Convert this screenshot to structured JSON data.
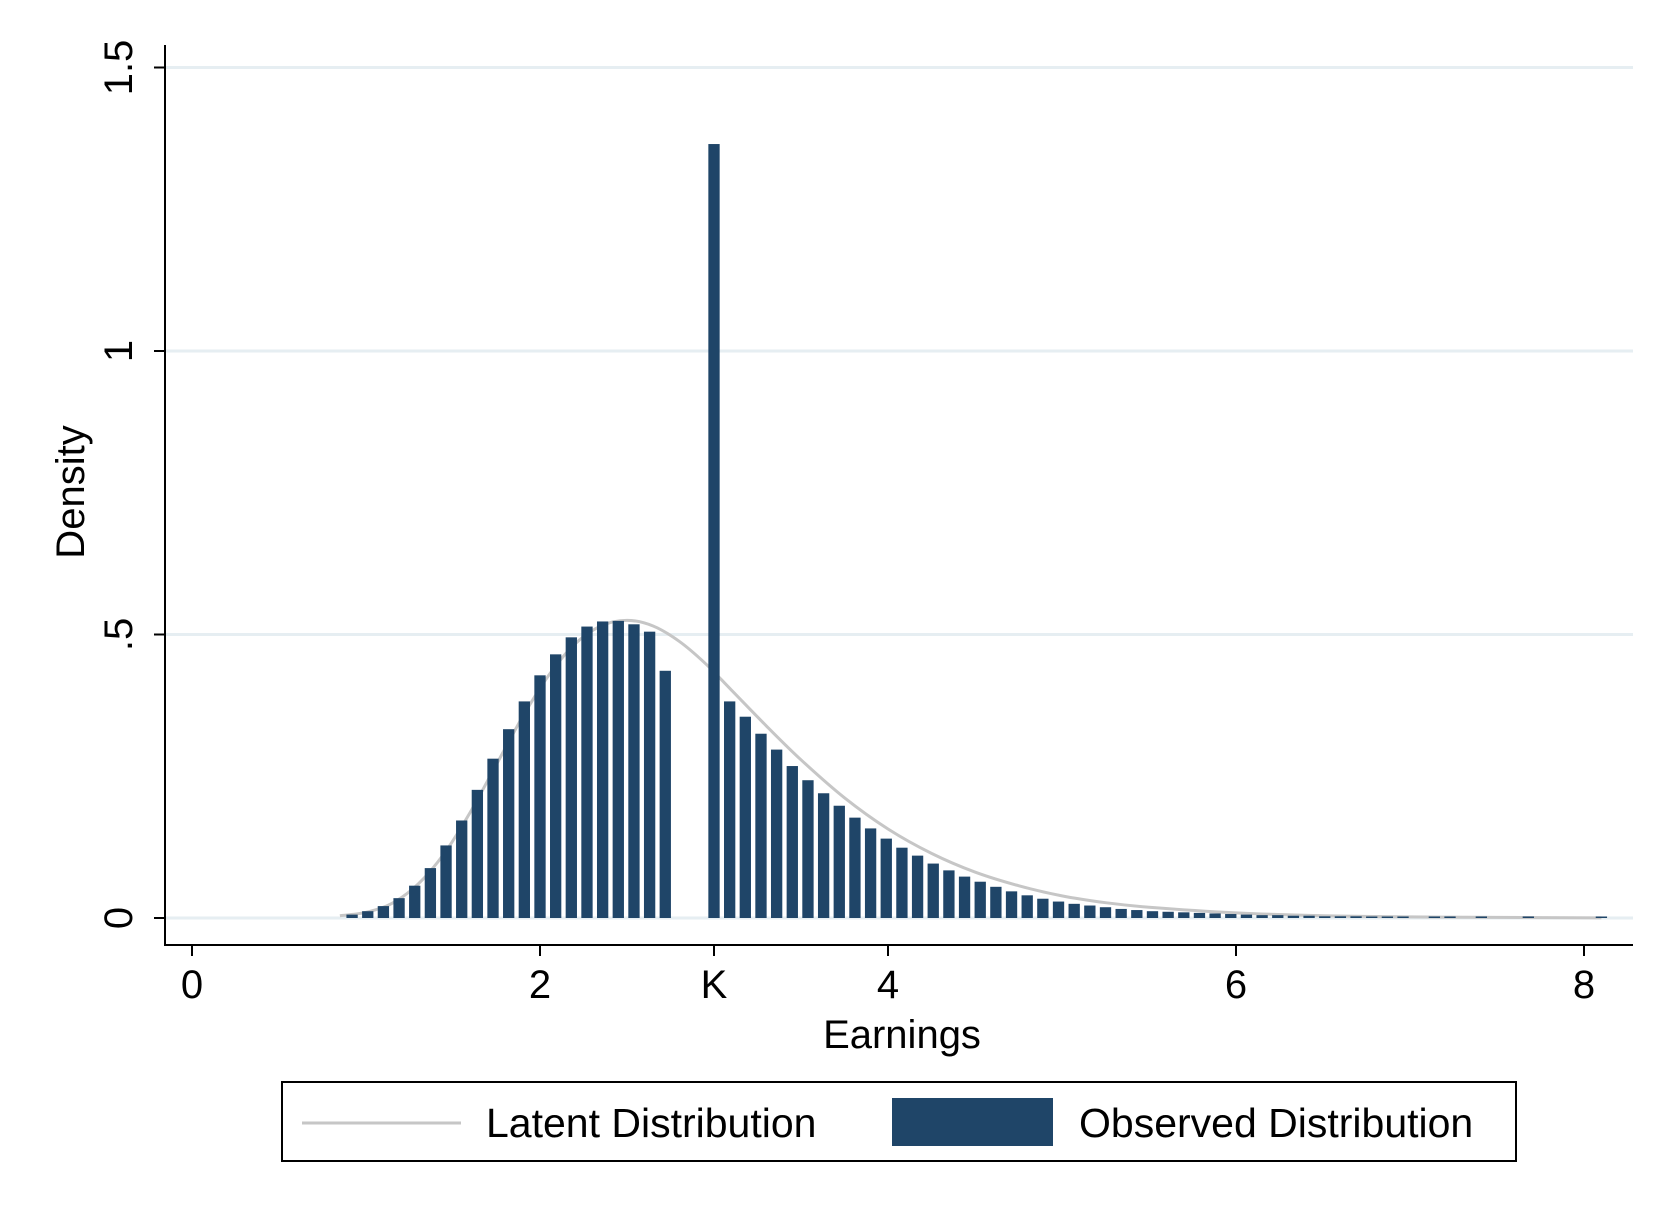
{
  "colors": {
    "bar": "#1f4568",
    "latent_line": "#c6c6c6",
    "grid": "#e6eef2",
    "axis": "#000000",
    "background": "#ffffff"
  },
  "chart_data": {
    "type": "bar",
    "title": "",
    "xlabel": "Earnings",
    "ylabel": "Density",
    "xlim": [
      -0.15,
      8.3
    ],
    "ylim": [
      -0.05,
      1.6
    ],
    "grid": true,
    "legend_position": "bottom",
    "x_ticks": [
      {
        "value": 0,
        "label": "0"
      },
      {
        "value": 2,
        "label": "2"
      },
      {
        "value": 3,
        "label": "K"
      },
      {
        "value": 4,
        "label": "4"
      },
      {
        "value": 6,
        "label": "6"
      },
      {
        "value": 8,
        "label": "8"
      }
    ],
    "y_ticks": [
      {
        "value": 0,
        "label": "0"
      },
      {
        "value": 0.5,
        "label": ".5"
      },
      {
        "value": 1,
        "label": "1"
      },
      {
        "value": 1.5,
        "label": "1.5"
      }
    ],
    "bar_width": 0.065,
    "series": [
      {
        "name": "Observed Distribution",
        "type": "bar",
        "x": [
          0.92,
          1.01,
          1.1,
          1.19,
          1.28,
          1.37,
          1.46,
          1.55,
          1.64,
          1.73,
          1.82,
          1.91,
          2.0,
          2.09,
          2.18,
          2.27,
          2.36,
          2.45,
          2.54,
          2.63,
          2.72,
          3.0,
          3.09,
          3.18,
          3.27,
          3.36,
          3.45,
          3.54,
          3.63,
          3.72,
          3.81,
          3.9,
          3.99,
          4.08,
          4.17,
          4.26,
          4.35,
          4.44,
          4.53,
          4.62,
          4.71,
          4.8,
          4.89,
          4.98,
          5.07,
          5.16,
          5.25,
          5.34,
          5.43,
          5.52,
          5.61,
          5.7,
          5.79,
          5.88,
          5.97,
          6.06,
          6.15,
          6.24,
          6.33,
          6.42,
          6.51,
          6.6,
          6.69,
          6.78,
          6.87,
          6.96,
          7.14,
          7.23,
          7.41,
          7.68,
          8.1
        ],
        "values": [
          0.006,
          0.012,
          0.021,
          0.035,
          0.057,
          0.088,
          0.128,
          0.172,
          0.226,
          0.281,
          0.333,
          0.382,
          0.428,
          0.465,
          0.495,
          0.514,
          0.523,
          0.524,
          0.518,
          0.505,
          0.436,
          1.365,
          0.382,
          0.355,
          0.325,
          0.297,
          0.268,
          0.243,
          0.22,
          0.198,
          0.177,
          0.158,
          0.14,
          0.124,
          0.11,
          0.096,
          0.084,
          0.073,
          0.064,
          0.055,
          0.047,
          0.04,
          0.034,
          0.029,
          0.025,
          0.022,
          0.019,
          0.016,
          0.014,
          0.012,
          0.011,
          0.01,
          0.009,
          0.008,
          0.007,
          0.006,
          0.005,
          0.005,
          0.004,
          0.004,
          0.003,
          0.003,
          0.003,
          0.002,
          0.002,
          0.002,
          0.002,
          0.002,
          0.002,
          0.002,
          0.002
        ]
      },
      {
        "name": "Latent Distribution",
        "type": "line",
        "x": [
          0.85,
          1.0,
          1.15,
          1.3,
          1.45,
          1.6,
          1.75,
          1.9,
          2.05,
          2.2,
          2.35,
          2.5,
          2.65,
          2.8,
          2.95,
          3.1,
          3.3,
          3.5,
          3.75,
          4.0,
          4.25,
          4.5,
          4.75,
          5.0,
          5.25,
          5.5,
          6.0,
          6.5,
          7.0,
          7.5,
          8.1
        ],
        "values": [
          0.004,
          0.01,
          0.026,
          0.06,
          0.114,
          0.187,
          0.271,
          0.355,
          0.428,
          0.483,
          0.515,
          0.525,
          0.515,
          0.488,
          0.449,
          0.402,
          0.339,
          0.279,
          0.212,
          0.157,
          0.114,
          0.081,
          0.057,
          0.039,
          0.027,
          0.019,
          0.009,
          0.004,
          0.002,
          0.001,
          0.0003
        ]
      }
    ]
  },
  "legend": {
    "items": [
      {
        "label": "Latent Distribution",
        "icon": "line-swatch"
      },
      {
        "label": "Observed Distribution",
        "icon": "bar-swatch"
      }
    ]
  }
}
